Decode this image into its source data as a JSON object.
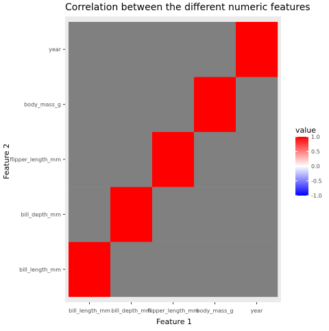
{
  "chart_data": {
    "type": "heatmap",
    "title": "Correlation between the different numeric features",
    "xlabel": "Feature 1",
    "ylabel": "Feature 2",
    "x_categories": [
      "bill_length_mm",
      "bill_depth_mm",
      "flipper_length_mm",
      "body_mass_g",
      "year"
    ],
    "y_categories": [
      "bill_length_mm",
      "bill_depth_mm",
      "flipper_length_mm",
      "body_mass_g",
      "year"
    ],
    "values": [
      [
        1,
        null,
        null,
        null,
        null
      ],
      [
        null,
        1,
        null,
        null,
        null
      ],
      [
        null,
        null,
        1,
        null,
        null
      ],
      [
        null,
        null,
        null,
        1,
        null
      ],
      [
        null,
        null,
        null,
        null,
        1
      ]
    ],
    "na_color": "#808080",
    "legend": {
      "title": "value",
      "placement": "right",
      "ticks": [
        1.0,
        0.5,
        0.0,
        -0.5,
        -1.0
      ],
      "tick_labels": [
        "1.0",
        "0.5",
        "0.0",
        "-0.5",
        "-1.0"
      ],
      "gradient": {
        "low": "#0000ff",
        "mid": "#ffffff",
        "high": "#ff0000"
      }
    }
  }
}
